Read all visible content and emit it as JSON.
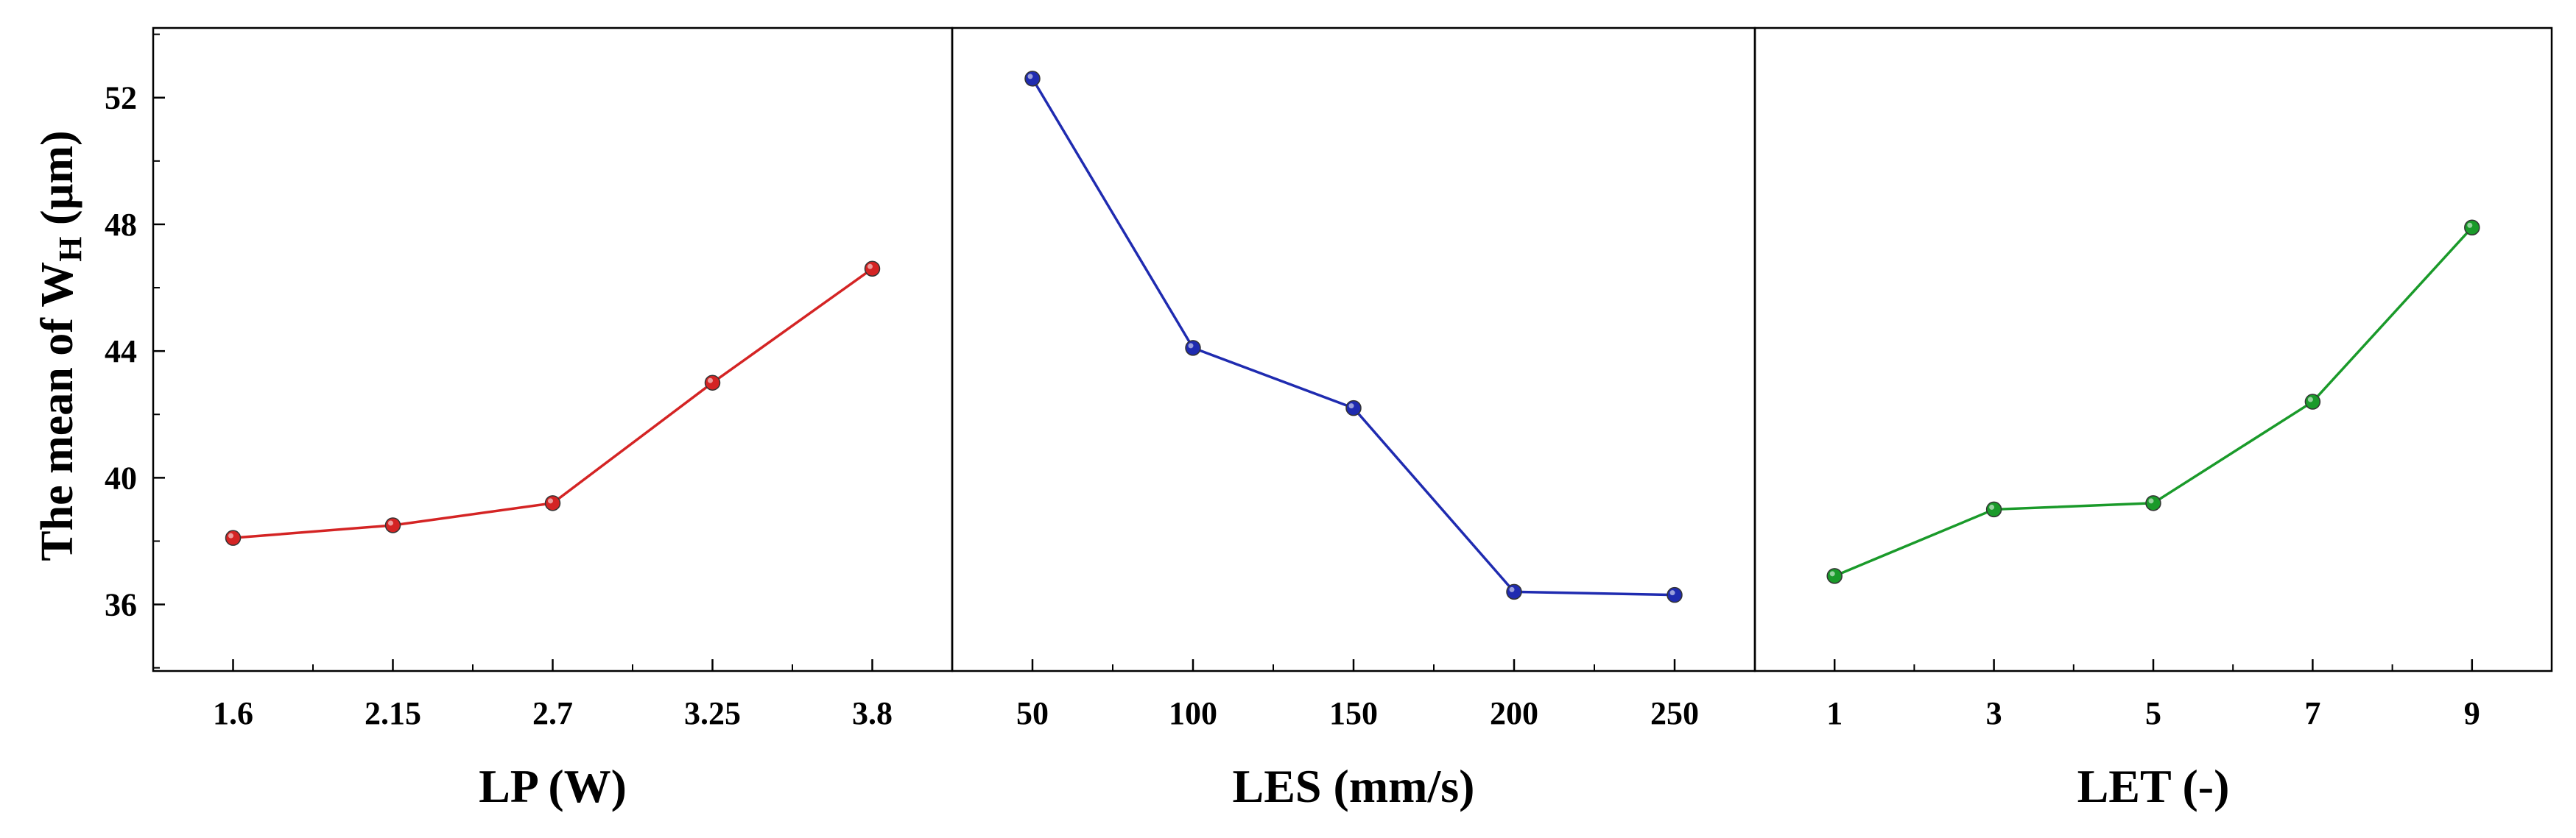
{
  "ylabel": {
    "prefix": "The mean of W",
    "subscript": "H",
    "suffix": " (µm)"
  },
  "chart_data": [
    {
      "type": "line",
      "xlabel": "LP (W)",
      "categories": [
        "1.6",
        "2.15",
        "2.7",
        "3.25",
        "3.8"
      ],
      "values": [
        38.1,
        38.5,
        39.2,
        43.0,
        46.6
      ],
      "color": "#d42424",
      "ylim": [
        33.9,
        54.2
      ],
      "yticks": [
        36,
        40,
        44,
        48,
        52
      ]
    },
    {
      "type": "line",
      "xlabel": "LES (mm/s)",
      "categories": [
        "50",
        "100",
        "150",
        "200",
        "250"
      ],
      "values": [
        52.6,
        44.1,
        42.2,
        36.4,
        36.3
      ],
      "color": "#1f2bb0",
      "ylim": [
        33.9,
        54.2
      ],
      "yticks": [
        36,
        40,
        44,
        48,
        52
      ]
    },
    {
      "type": "line",
      "xlabel": "LET (-)",
      "categories": [
        "1",
        "3",
        "5",
        "7",
        "9"
      ],
      "values": [
        36.9,
        39.0,
        39.2,
        42.4,
        47.9
      ],
      "color": "#1a9a2a",
      "ylim": [
        33.9,
        54.2
      ],
      "yticks": [
        36,
        40,
        44,
        48,
        52
      ]
    }
  ]
}
